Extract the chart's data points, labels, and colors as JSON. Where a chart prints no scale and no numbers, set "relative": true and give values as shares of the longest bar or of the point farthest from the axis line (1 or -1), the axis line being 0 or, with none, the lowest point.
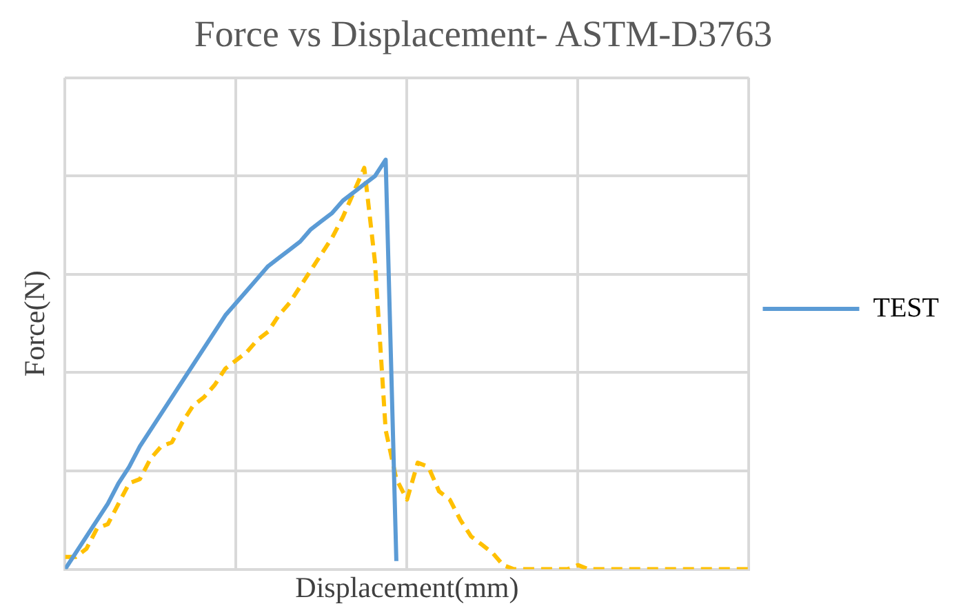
{
  "chart_data": {
    "type": "line",
    "title": "Force vs Displacement- ASTM-D3763",
    "xlabel": "Displacement(mm)",
    "ylabel": "Force(N)",
    "relative": true,
    "grid": true,
    "legend": "right",
    "categories": [
      null,
      null,
      null,
      null,
      null,
      null,
      null,
      null,
      null,
      null,
      null,
      null,
      null,
      null,
      null,
      null,
      null,
      null,
      null,
      null,
      null,
      null,
      null,
      null,
      null,
      null,
      null,
      null,
      null,
      null,
      null,
      null,
      null,
      null,
      null,
      null,
      null,
      null,
      null,
      null,
      null,
      null,
      null,
      null,
      null,
      null,
      null,
      null,
      null,
      null,
      null,
      null,
      null,
      null,
      null,
      null,
      null,
      null,
      null,
      null,
      null,
      null,
      null,
      null,
      null
    ],
    "series": [
      {
        "name": "TEST",
        "color": "#5b9bd5",
        "line_style": "solid",
        "values": [
          0,
          0.04,
          0.08,
          0.12,
          0.16,
          0.21,
          0.25,
          0.3,
          0.34,
          0.38,
          0.42,
          0.46,
          0.5,
          0.54,
          0.58,
          0.62,
          0.65,
          0.68,
          0.71,
          0.74,
          0.76,
          0.78,
          0.8,
          0.83,
          0.85,
          0.87,
          0.9,
          0.92,
          0.94,
          0.96,
          1,
          0.02,
          null,
          null,
          null,
          null,
          null,
          null,
          null,
          null,
          null,
          null,
          null,
          null,
          null,
          null,
          null,
          null,
          null,
          null,
          null,
          null,
          null,
          null,
          null,
          null,
          null,
          null,
          null,
          null,
          null,
          null,
          null,
          null,
          null
        ]
      },
      {
        "color": "#ffc000",
        "line_style": "dashed",
        "values": [
          0.03,
          0.03,
          0.05,
          0.1,
          0.11,
          0.16,
          0.21,
          0.22,
          0.27,
          0.3,
          0.31,
          0.36,
          0.4,
          0.42,
          0.45,
          0.49,
          0.51,
          0.53,
          0.56,
          0.58,
          0.62,
          0.65,
          0.69,
          0.73,
          0.77,
          0.81,
          0.86,
          0.92,
          0.98,
          0.75,
          0.34,
          0.22,
          0.17,
          0.26,
          0.25,
          0.19,
          0.17,
          0.12,
          0.08,
          0.06,
          0.04,
          0.01,
          0,
          0,
          0,
          0,
          0,
          0,
          0.01,
          0,
          0,
          0,
          0,
          0,
          0,
          0,
          0,
          0,
          0,
          0,
          0,
          0,
          0,
          0,
          0
        ]
      }
    ]
  }
}
